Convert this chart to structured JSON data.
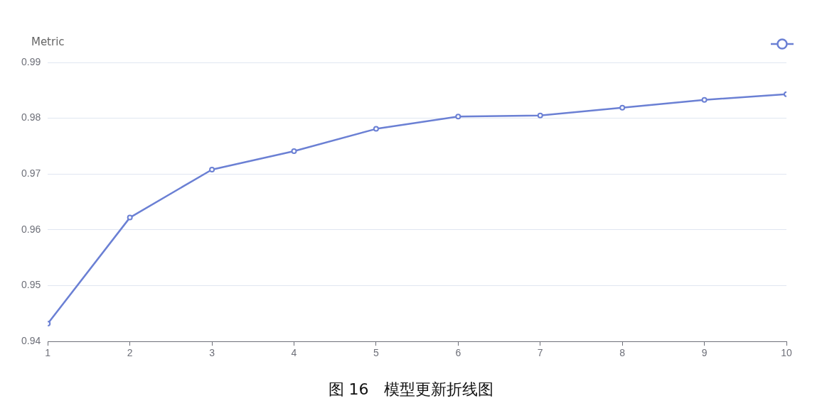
{
  "chart_data": {
    "type": "line",
    "ylabel": "Metric",
    "annotations": [
      "图 16　模型更新折线图"
    ],
    "x": [
      1,
      2,
      3,
      4,
      5,
      6,
      7,
      8,
      9,
      10
    ],
    "series": [
      {
        "color": "#6b80d4",
        "values": [
          0.9432,
          0.9622,
          0.9708,
          0.9741,
          0.9781,
          0.9803,
          0.9805,
          0.9819,
          0.9833,
          0.9843
        ]
      }
    ],
    "xlim": [
      1,
      10
    ],
    "xticks": [
      1,
      2,
      3,
      4,
      5,
      6,
      7,
      8,
      9,
      10
    ],
    "ylim": [
      0.94,
      0.99
    ],
    "yticks": [
      0.94,
      0.95,
      0.96,
      0.97,
      0.98,
      0.99
    ],
    "grid": "y",
    "marker": "circle",
    "line_style": "solid"
  }
}
